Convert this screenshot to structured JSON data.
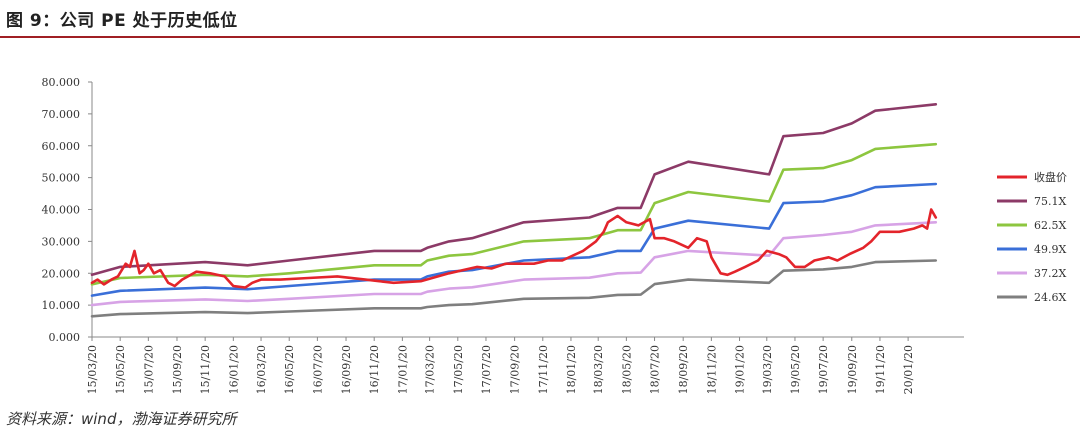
{
  "header": {
    "title": "图 9：公司 PE 处于历史低位"
  },
  "footer": {
    "source": "资料来源：wind，渤海证券研究所"
  },
  "chart_data": {
    "type": "line",
    "xlim": [
      "2015-03-20",
      "2020-05-20"
    ],
    "ylim": [
      0,
      80
    ],
    "yticks": [
      "0.000",
      "10.000",
      "20.000",
      "30.000",
      "40.000",
      "50.000",
      "60.000",
      "70.000",
      "80.000"
    ],
    "xticks": [
      "15/03/20",
      "15/05/20",
      "15/07/20",
      "15/09/20",
      "15/11/20",
      "16/01/20",
      "16/03/20",
      "16/05/20",
      "16/07/20",
      "16/09/20",
      "16/11/20",
      "17/01/20",
      "17/03/20",
      "17/05/20",
      "17/07/20",
      "17/09/20",
      "17/11/20",
      "18/01/20",
      "18/03/20",
      "18/05/20",
      "18/07/20",
      "18/09/20",
      "18/11/20",
      "19/01/20",
      "19/03/20",
      "19/05/20",
      "19/07/20",
      "19/09/20",
      "19/11/20",
      "20/01/20"
    ],
    "legend_position": "right",
    "series": [
      {
        "name": "收盘价",
        "color": "#e3242b",
        "width": 2.6,
        "points": [
          [
            "2015-03-20",
            17
          ],
          [
            "2015-04-01",
            18
          ],
          [
            "2015-04-15",
            16.5
          ],
          [
            "2015-05-01",
            18
          ],
          [
            "2015-05-15",
            19
          ],
          [
            "2015-06-01",
            23
          ],
          [
            "2015-06-10",
            22
          ],
          [
            "2015-06-20",
            27
          ],
          [
            "2015-07-01",
            20
          ],
          [
            "2015-07-10",
            21
          ],
          [
            "2015-07-20",
            23
          ],
          [
            "2015-08-01",
            20
          ],
          [
            "2015-08-15",
            21
          ],
          [
            "2015-09-01",
            17
          ],
          [
            "2015-09-15",
            16
          ],
          [
            "2015-10-01",
            18
          ],
          [
            "2015-11-01",
            20.5
          ],
          [
            "2015-12-01",
            20
          ],
          [
            "2016-01-01",
            19
          ],
          [
            "2016-01-20",
            16
          ],
          [
            "2016-02-15",
            15.5
          ],
          [
            "2016-03-01",
            17
          ],
          [
            "2016-03-20",
            18
          ],
          [
            "2016-05-01",
            18
          ],
          [
            "2016-07-01",
            18.5
          ],
          [
            "2016-09-01",
            19
          ],
          [
            "2016-11-01",
            18
          ],
          [
            "2016-12-01",
            17.5
          ],
          [
            "2017-01-01",
            17
          ],
          [
            "2017-03-01",
            17.5
          ],
          [
            "2017-05-01",
            20
          ],
          [
            "2017-07-01",
            22
          ],
          [
            "2017-08-01",
            21.5
          ],
          [
            "2017-09-01",
            23
          ],
          [
            "2017-11-01",
            23
          ],
          [
            "2017-12-01",
            24
          ],
          [
            "2018-01-01",
            24
          ],
          [
            "2018-02-15",
            27
          ],
          [
            "2018-03-15",
            30
          ],
          [
            "2018-04-01",
            33
          ],
          [
            "2018-04-10",
            36
          ],
          [
            "2018-05-01",
            38
          ],
          [
            "2018-05-20",
            36
          ],
          [
            "2018-06-15",
            35
          ],
          [
            "2018-07-10",
            37
          ],
          [
            "2018-07-20",
            31
          ],
          [
            "2018-08-10",
            31
          ],
          [
            "2018-09-01",
            30
          ],
          [
            "2018-10-01",
            28
          ],
          [
            "2018-10-20",
            31
          ],
          [
            "2018-11-10",
            30
          ],
          [
            "2018-11-20",
            25
          ],
          [
            "2018-12-10",
            20
          ],
          [
            "2018-12-25",
            19.5
          ],
          [
            "2019-01-10",
            20.5
          ],
          [
            "2019-02-01",
            22
          ],
          [
            "2019-03-01",
            24
          ],
          [
            "2019-03-20",
            27
          ],
          [
            "2019-04-15",
            26
          ],
          [
            "2019-05-01",
            25
          ],
          [
            "2019-05-20",
            22
          ],
          [
            "2019-06-10",
            22
          ],
          [
            "2019-07-01",
            24
          ],
          [
            "2019-08-01",
            25
          ],
          [
            "2019-08-20",
            24
          ],
          [
            "2019-09-15",
            26
          ],
          [
            "2019-10-15",
            28
          ],
          [
            "2019-11-01",
            30
          ],
          [
            "2019-11-20",
            33
          ],
          [
            "2019-12-10",
            33
          ],
          [
            "2020-01-01",
            33
          ],
          [
            "2020-02-01",
            34
          ],
          [
            "2020-02-20",
            35
          ],
          [
            "2020-03-01",
            34
          ],
          [
            "2020-03-10",
            40
          ],
          [
            "2020-03-20",
            37.5
          ]
        ]
      },
      {
        "name": "75.1X",
        "color": "#8c3a67",
        "width": 2.6,
        "points": [
          [
            "2015-03-20",
            19.5
          ],
          [
            "2015-05-20",
            22
          ],
          [
            "2015-11-20",
            23.5
          ],
          [
            "2016-02-20",
            22.5
          ],
          [
            "2016-05-20",
            24
          ],
          [
            "2016-11-20",
            27
          ],
          [
            "2017-03-01",
            27
          ],
          [
            "2017-03-15",
            28
          ],
          [
            "2017-05-01",
            30
          ],
          [
            "2017-06-20",
            31
          ],
          [
            "2017-10-10",
            36
          ],
          [
            "2018-03-01",
            37.5
          ],
          [
            "2018-05-01",
            40.5
          ],
          [
            "2018-06-20",
            40.5
          ],
          [
            "2018-07-20",
            51
          ],
          [
            "2018-10-01",
            55
          ],
          [
            "2019-03-25",
            51
          ],
          [
            "2019-04-25",
            63
          ],
          [
            "2019-07-20",
            64
          ],
          [
            "2019-09-20",
            67
          ],
          [
            "2019-11-10",
            71
          ],
          [
            "2020-03-20",
            73
          ]
        ]
      },
      {
        "name": "62.5X",
        "color": "#8dc63f",
        "width": 2.6,
        "points": [
          [
            "2015-03-20",
            16.5
          ],
          [
            "2015-05-20",
            18.5
          ],
          [
            "2015-11-20",
            19.5
          ],
          [
            "2016-02-20",
            19
          ],
          [
            "2016-05-20",
            20
          ],
          [
            "2016-11-20",
            22.5
          ],
          [
            "2017-03-01",
            22.5
          ],
          [
            "2017-03-15",
            24
          ],
          [
            "2017-05-01",
            25.5
          ],
          [
            "2017-06-20",
            26
          ],
          [
            "2017-10-10",
            30
          ],
          [
            "2018-03-01",
            31
          ],
          [
            "2018-05-01",
            33.5
          ],
          [
            "2018-06-20",
            33.5
          ],
          [
            "2018-07-20",
            42
          ],
          [
            "2018-10-01",
            45.5
          ],
          [
            "2019-03-25",
            42.5
          ],
          [
            "2019-04-25",
            52.5
          ],
          [
            "2019-07-20",
            53
          ],
          [
            "2019-09-20",
            55.5
          ],
          [
            "2019-11-10",
            59
          ],
          [
            "2020-03-20",
            60.5
          ]
        ]
      },
      {
        "name": "49.9X",
        "color": "#3a6fd8",
        "width": 2.6,
        "points": [
          [
            "2015-03-20",
            13
          ],
          [
            "2015-05-20",
            14.5
          ],
          [
            "2015-11-20",
            15.5
          ],
          [
            "2016-02-20",
            15
          ],
          [
            "2016-05-20",
            16
          ],
          [
            "2016-11-20",
            18
          ],
          [
            "2017-03-01",
            18
          ],
          [
            "2017-03-15",
            19
          ],
          [
            "2017-05-01",
            20.5
          ],
          [
            "2017-06-20",
            21
          ],
          [
            "2017-10-10",
            24
          ],
          [
            "2018-03-01",
            25
          ],
          [
            "2018-05-01",
            27
          ],
          [
            "2018-06-20",
            27
          ],
          [
            "2018-07-20",
            34
          ],
          [
            "2018-10-01",
            36.5
          ],
          [
            "2019-03-25",
            34
          ],
          [
            "2019-04-25",
            42
          ],
          [
            "2019-07-20",
            42.5
          ],
          [
            "2019-09-20",
            44.5
          ],
          [
            "2019-11-10",
            47
          ],
          [
            "2020-03-20",
            48
          ]
        ]
      },
      {
        "name": "37.2X",
        "color": "#d7a3e6",
        "width": 2.6,
        "points": [
          [
            "2015-03-20",
            10
          ],
          [
            "2015-05-20",
            11
          ],
          [
            "2015-11-20",
            11.8
          ],
          [
            "2016-02-20",
            11.3
          ],
          [
            "2016-05-20",
            12
          ],
          [
            "2016-11-20",
            13.5
          ],
          [
            "2017-03-01",
            13.5
          ],
          [
            "2017-03-15",
            14.2
          ],
          [
            "2017-05-01",
            15.2
          ],
          [
            "2017-06-20",
            15.6
          ],
          [
            "2017-10-10",
            18
          ],
          [
            "2018-03-01",
            18.6
          ],
          [
            "2018-05-01",
            20
          ],
          [
            "2018-06-20",
            20.2
          ],
          [
            "2018-07-20",
            25
          ],
          [
            "2018-10-01",
            27
          ],
          [
            "2019-03-25",
            25.5
          ],
          [
            "2019-04-25",
            31
          ],
          [
            "2019-07-20",
            32
          ],
          [
            "2019-09-20",
            33
          ],
          [
            "2019-11-10",
            35
          ],
          [
            "2020-03-20",
            36
          ]
        ]
      },
      {
        "name": "24.6X",
        "color": "#7f7f7f",
        "width": 2.6,
        "points": [
          [
            "2015-03-20",
            6.5
          ],
          [
            "2015-05-20",
            7.2
          ],
          [
            "2015-11-20",
            7.8
          ],
          [
            "2016-02-20",
            7.5
          ],
          [
            "2016-05-20",
            8
          ],
          [
            "2016-11-20",
            9
          ],
          [
            "2017-03-01",
            9
          ],
          [
            "2017-03-15",
            9.4
          ],
          [
            "2017-05-01",
            10
          ],
          [
            "2017-06-20",
            10.3
          ],
          [
            "2017-10-10",
            12
          ],
          [
            "2018-03-01",
            12.3
          ],
          [
            "2018-05-01",
            13.2
          ],
          [
            "2018-06-20",
            13.3
          ],
          [
            "2018-07-20",
            16.6
          ],
          [
            "2018-10-01",
            18
          ],
          [
            "2019-03-25",
            17
          ],
          [
            "2019-04-25",
            20.8
          ],
          [
            "2019-07-20",
            21.2
          ],
          [
            "2019-09-20",
            22
          ],
          [
            "2019-11-10",
            23.5
          ],
          [
            "2020-03-20",
            24
          ]
        ]
      }
    ]
  }
}
